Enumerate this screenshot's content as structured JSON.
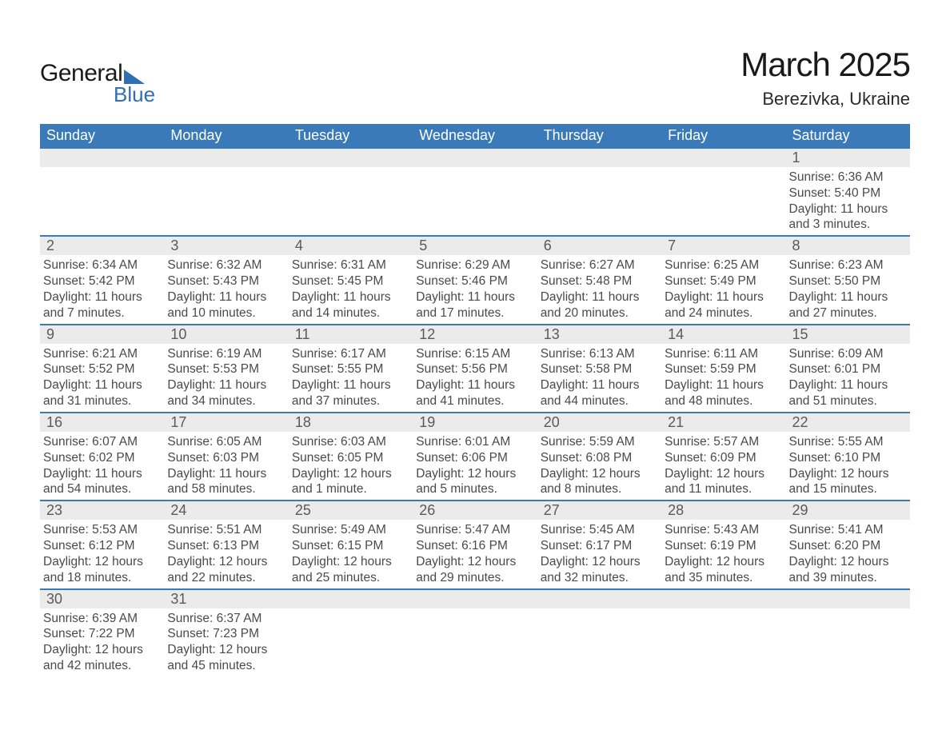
{
  "brand": {
    "word1": "General",
    "word2": "Blue",
    "accent_color": "#2f6fb3"
  },
  "title": "March 2025",
  "location": "Berezivka, Ukraine",
  "colors": {
    "header_bg": "#3a7ab8",
    "header_text": "#ffffff",
    "daynum_bg": "#ebebeb",
    "text": "#4a4a4a",
    "row_divider": "#3a7ab8",
    "background": "#ffffff"
  },
  "day_headers": [
    "Sunday",
    "Monday",
    "Tuesday",
    "Wednesday",
    "Thursday",
    "Friday",
    "Saturday"
  ],
  "weeks": [
    [
      null,
      null,
      null,
      null,
      null,
      null,
      {
        "n": "1",
        "sunrise": "6:36 AM",
        "sunset": "5:40 PM",
        "daylight": "11 hours and 3 minutes."
      }
    ],
    [
      {
        "n": "2",
        "sunrise": "6:34 AM",
        "sunset": "5:42 PM",
        "daylight": "11 hours and 7 minutes."
      },
      {
        "n": "3",
        "sunrise": "6:32 AM",
        "sunset": "5:43 PM",
        "daylight": "11 hours and 10 minutes."
      },
      {
        "n": "4",
        "sunrise": "6:31 AM",
        "sunset": "5:45 PM",
        "daylight": "11 hours and 14 minutes."
      },
      {
        "n": "5",
        "sunrise": "6:29 AM",
        "sunset": "5:46 PM",
        "daylight": "11 hours and 17 minutes."
      },
      {
        "n": "6",
        "sunrise": "6:27 AM",
        "sunset": "5:48 PM",
        "daylight": "11 hours and 20 minutes."
      },
      {
        "n": "7",
        "sunrise": "6:25 AM",
        "sunset": "5:49 PM",
        "daylight": "11 hours and 24 minutes."
      },
      {
        "n": "8",
        "sunrise": "6:23 AM",
        "sunset": "5:50 PM",
        "daylight": "11 hours and 27 minutes."
      }
    ],
    [
      {
        "n": "9",
        "sunrise": "6:21 AM",
        "sunset": "5:52 PM",
        "daylight": "11 hours and 31 minutes."
      },
      {
        "n": "10",
        "sunrise": "6:19 AM",
        "sunset": "5:53 PM",
        "daylight": "11 hours and 34 minutes."
      },
      {
        "n": "11",
        "sunrise": "6:17 AM",
        "sunset": "5:55 PM",
        "daylight": "11 hours and 37 minutes."
      },
      {
        "n": "12",
        "sunrise": "6:15 AM",
        "sunset": "5:56 PM",
        "daylight": "11 hours and 41 minutes."
      },
      {
        "n": "13",
        "sunrise": "6:13 AM",
        "sunset": "5:58 PM",
        "daylight": "11 hours and 44 minutes."
      },
      {
        "n": "14",
        "sunrise": "6:11 AM",
        "sunset": "5:59 PM",
        "daylight": "11 hours and 48 minutes."
      },
      {
        "n": "15",
        "sunrise": "6:09 AM",
        "sunset": "6:01 PM",
        "daylight": "11 hours and 51 minutes."
      }
    ],
    [
      {
        "n": "16",
        "sunrise": "6:07 AM",
        "sunset": "6:02 PM",
        "daylight": "11 hours and 54 minutes."
      },
      {
        "n": "17",
        "sunrise": "6:05 AM",
        "sunset": "6:03 PM",
        "daylight": "11 hours and 58 minutes."
      },
      {
        "n": "18",
        "sunrise": "6:03 AM",
        "sunset": "6:05 PM",
        "daylight": "12 hours and 1 minute."
      },
      {
        "n": "19",
        "sunrise": "6:01 AM",
        "sunset": "6:06 PM",
        "daylight": "12 hours and 5 minutes."
      },
      {
        "n": "20",
        "sunrise": "5:59 AM",
        "sunset": "6:08 PM",
        "daylight": "12 hours and 8 minutes."
      },
      {
        "n": "21",
        "sunrise": "5:57 AM",
        "sunset": "6:09 PM",
        "daylight": "12 hours and 11 minutes."
      },
      {
        "n": "22",
        "sunrise": "5:55 AM",
        "sunset": "6:10 PM",
        "daylight": "12 hours and 15 minutes."
      }
    ],
    [
      {
        "n": "23",
        "sunrise": "5:53 AM",
        "sunset": "6:12 PM",
        "daylight": "12 hours and 18 minutes."
      },
      {
        "n": "24",
        "sunrise": "5:51 AM",
        "sunset": "6:13 PM",
        "daylight": "12 hours and 22 minutes."
      },
      {
        "n": "25",
        "sunrise": "5:49 AM",
        "sunset": "6:15 PM",
        "daylight": "12 hours and 25 minutes."
      },
      {
        "n": "26",
        "sunrise": "5:47 AM",
        "sunset": "6:16 PM",
        "daylight": "12 hours and 29 minutes."
      },
      {
        "n": "27",
        "sunrise": "5:45 AM",
        "sunset": "6:17 PM",
        "daylight": "12 hours and 32 minutes."
      },
      {
        "n": "28",
        "sunrise": "5:43 AM",
        "sunset": "6:19 PM",
        "daylight": "12 hours and 35 minutes."
      },
      {
        "n": "29",
        "sunrise": "5:41 AM",
        "sunset": "6:20 PM",
        "daylight": "12 hours and 39 minutes."
      }
    ],
    [
      {
        "n": "30",
        "sunrise": "6:39 AM",
        "sunset": "7:22 PM",
        "daylight": "12 hours and 42 minutes."
      },
      {
        "n": "31",
        "sunrise": "6:37 AM",
        "sunset": "7:23 PM",
        "daylight": "12 hours and 45 minutes."
      },
      null,
      null,
      null,
      null,
      null
    ]
  ],
  "labels": {
    "sunrise": "Sunrise: ",
    "sunset": "Sunset: ",
    "daylight": "Daylight: "
  }
}
